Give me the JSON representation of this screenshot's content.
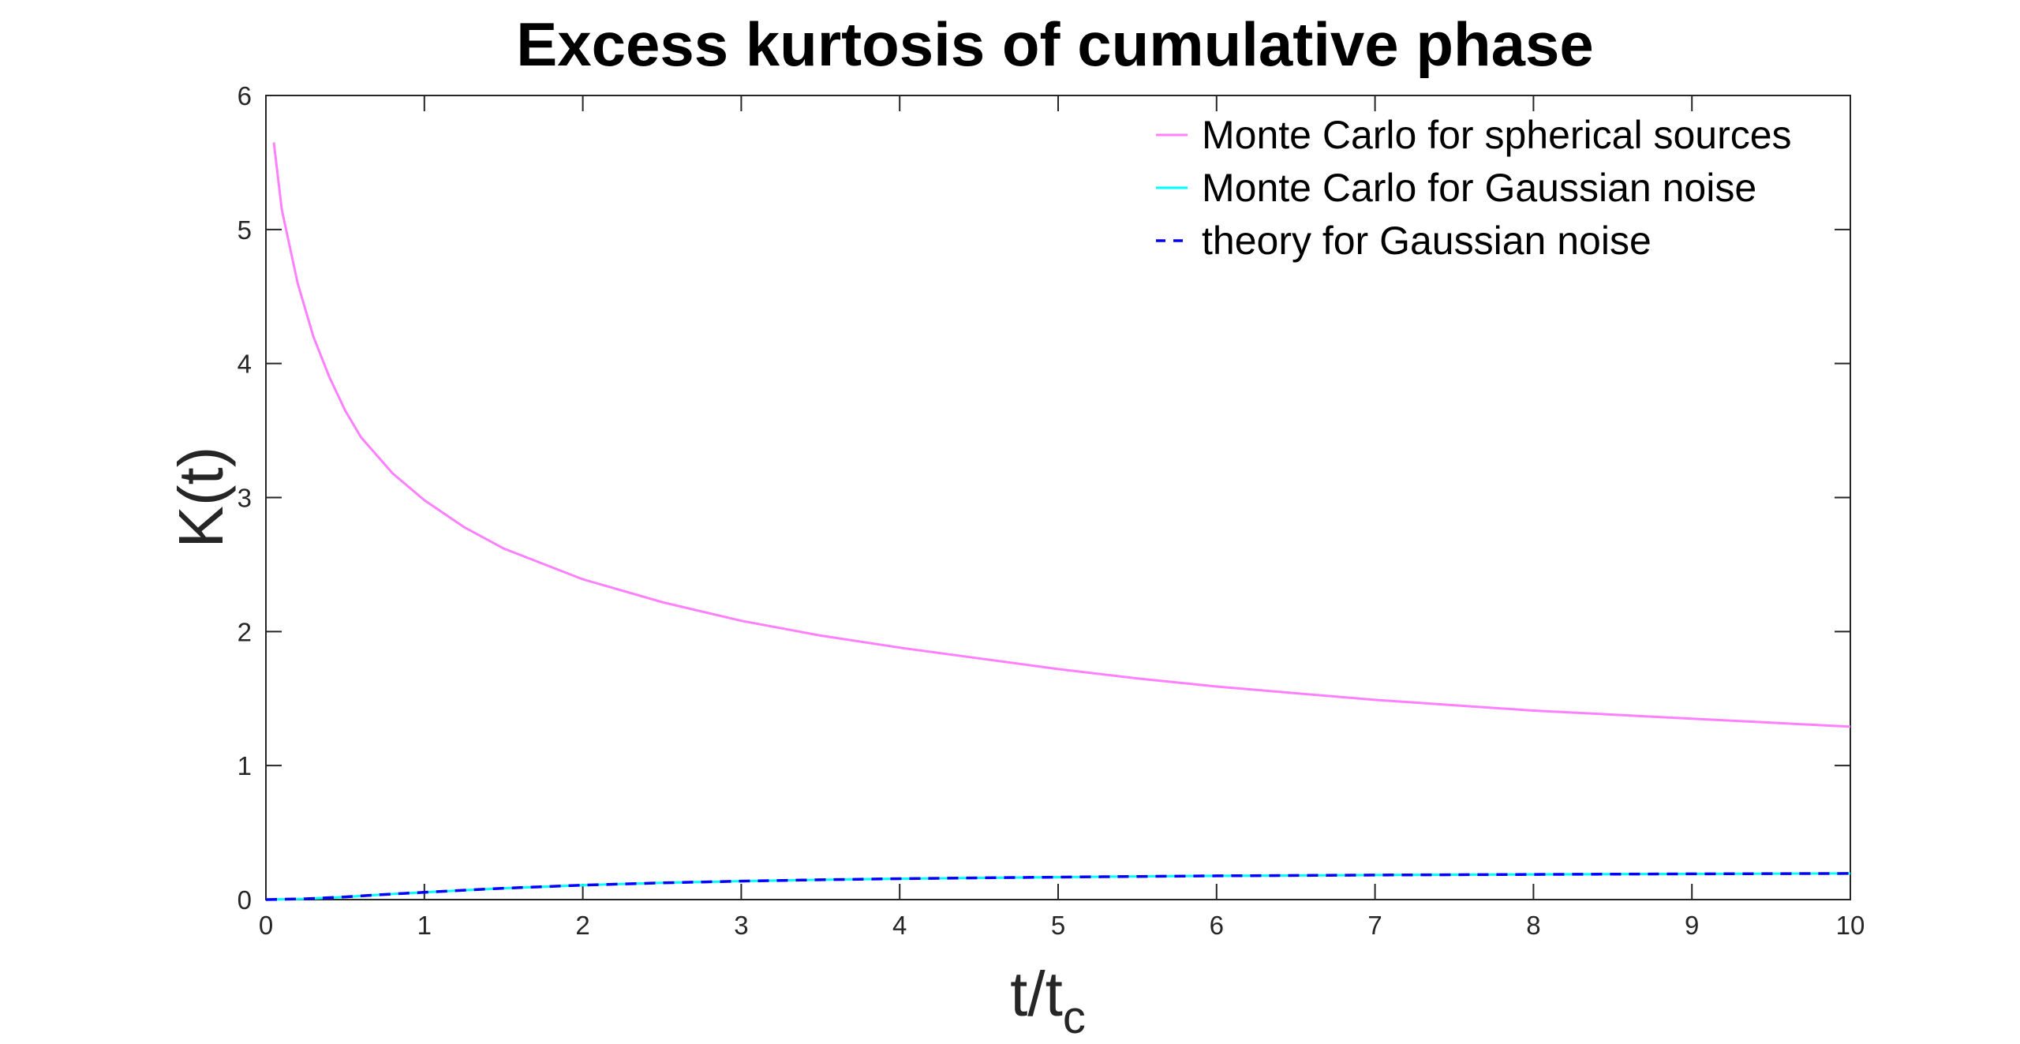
{
  "chart_data": {
    "type": "line",
    "title": "Excess kurtosis of cumulative phase",
    "xlabel": "t/t",
    "xlabel_subscript": "c",
    "ylabel": "K(t)",
    "xlim": [
      0,
      10
    ],
    "ylim": [
      0,
      6
    ],
    "xticks": [
      0,
      1,
      2,
      3,
      4,
      5,
      6,
      7,
      8,
      9,
      10
    ],
    "yticks": [
      0,
      1,
      2,
      3,
      4,
      5,
      6
    ],
    "xtick_labels": [
      "0",
      "1",
      "2",
      "3",
      "4",
      "5",
      "6",
      "7",
      "8",
      "9",
      "10"
    ],
    "ytick_labels": [
      "0",
      "1",
      "2",
      "3",
      "4",
      "5",
      "6"
    ],
    "legend_position": "top-right",
    "grid": false,
    "series": [
      {
        "name": "Monte Carlo for spherical sources",
        "color": "#ff80ff",
        "style": "solid",
        "x": [
          0.05,
          0.1,
          0.2,
          0.3,
          0.4,
          0.5,
          0.6,
          0.8,
          1.0,
          1.25,
          1.5,
          2.0,
          2.5,
          3.0,
          3.5,
          4.0,
          4.5,
          5.0,
          5.5,
          6.0,
          6.5,
          7.0,
          7.5,
          8.0,
          8.5,
          9.0,
          9.5,
          10.0
        ],
        "y": [
          5.65,
          5.15,
          4.6,
          4.2,
          3.9,
          3.65,
          3.45,
          3.18,
          2.98,
          2.78,
          2.62,
          2.39,
          2.22,
          2.08,
          1.97,
          1.88,
          1.8,
          1.72,
          1.65,
          1.59,
          1.54,
          1.49,
          1.45,
          1.41,
          1.38,
          1.35,
          1.32,
          1.29
        ]
      },
      {
        "name": "Monte Carlo for Gaussian noise",
        "color": "#00ffff",
        "style": "solid",
        "x": [
          0.0,
          0.25,
          0.5,
          0.75,
          1.0,
          1.5,
          2.0,
          2.5,
          3.0,
          3.5,
          4.0,
          5.0,
          6.0,
          7.0,
          8.0,
          9.0,
          10.0
        ],
        "y": [
          0.0,
          0.006,
          0.02,
          0.038,
          0.055,
          0.085,
          0.108,
          0.125,
          0.138,
          0.148,
          0.156,
          0.168,
          0.177,
          0.183,
          0.188,
          0.192,
          0.195
        ]
      },
      {
        "name": "theory for Gaussian noise",
        "color": "#0000ff",
        "style": "dashed",
        "x": [
          0.0,
          0.25,
          0.5,
          0.75,
          1.0,
          1.5,
          2.0,
          2.5,
          3.0,
          3.5,
          4.0,
          5.0,
          6.0,
          7.0,
          8.0,
          9.0,
          10.0
        ],
        "y": [
          0.0,
          0.006,
          0.02,
          0.038,
          0.055,
          0.085,
          0.108,
          0.125,
          0.138,
          0.148,
          0.156,
          0.168,
          0.177,
          0.183,
          0.188,
          0.192,
          0.195
        ]
      }
    ]
  }
}
